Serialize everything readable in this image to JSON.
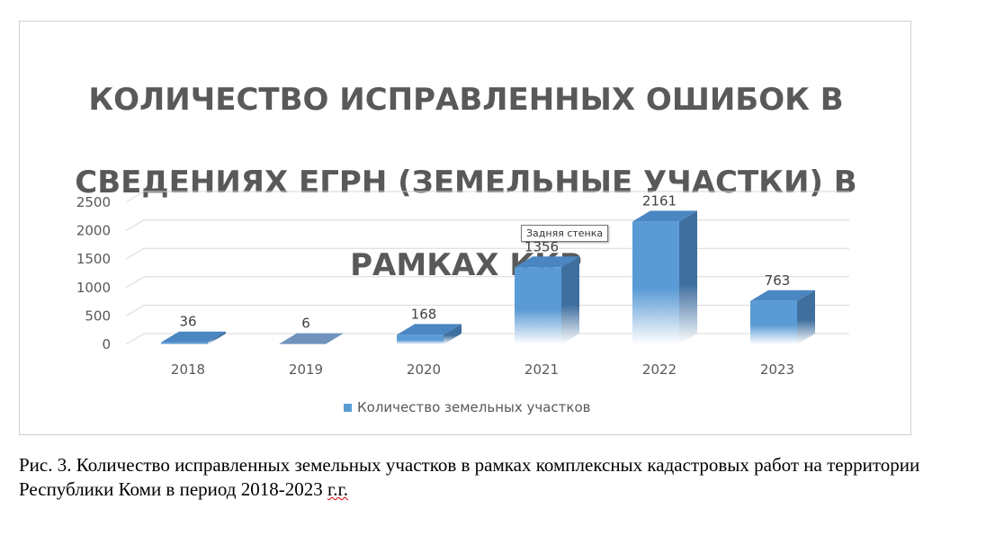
{
  "chart_data": {
    "type": "bar",
    "title_lines": [
      "КОЛИЧЕСТВО ИСПРАВЛЕННЫХ ОШИБОК В",
      "СВЕДЕНИЯХ ЕГРН (ЗЕМЕЛЬНЫЕ УЧАСТКИ) В",
      "РАМКАХ ККР"
    ],
    "categories": [
      "2018",
      "2019",
      "2020",
      "2021",
      "2022",
      "2023"
    ],
    "series": [
      {
        "name": "Количество земельных участков",
        "values": [
          36,
          6,
          168,
          1356,
          2161,
          763
        ]
      }
    ],
    "ylim": [
      0,
      2500
    ],
    "yticks": [
      0,
      500,
      1000,
      1500,
      2000,
      2500
    ],
    "grid": true,
    "legend_position": "bottom",
    "style": "3d-column",
    "colors": {
      "bar": "#5b9bd5",
      "bar_dark": "#2e5f8e",
      "text": "#595959",
      "grid": "#d9d9d9"
    }
  },
  "tooltip": "Задняя стенка",
  "caption": {
    "main": "Рис. 3. Количество исправленных земельных участков в рамках комплексных кадастровых работ на территории Республики Коми в период 2018-2023 ",
    "underlined": "г.г."
  }
}
